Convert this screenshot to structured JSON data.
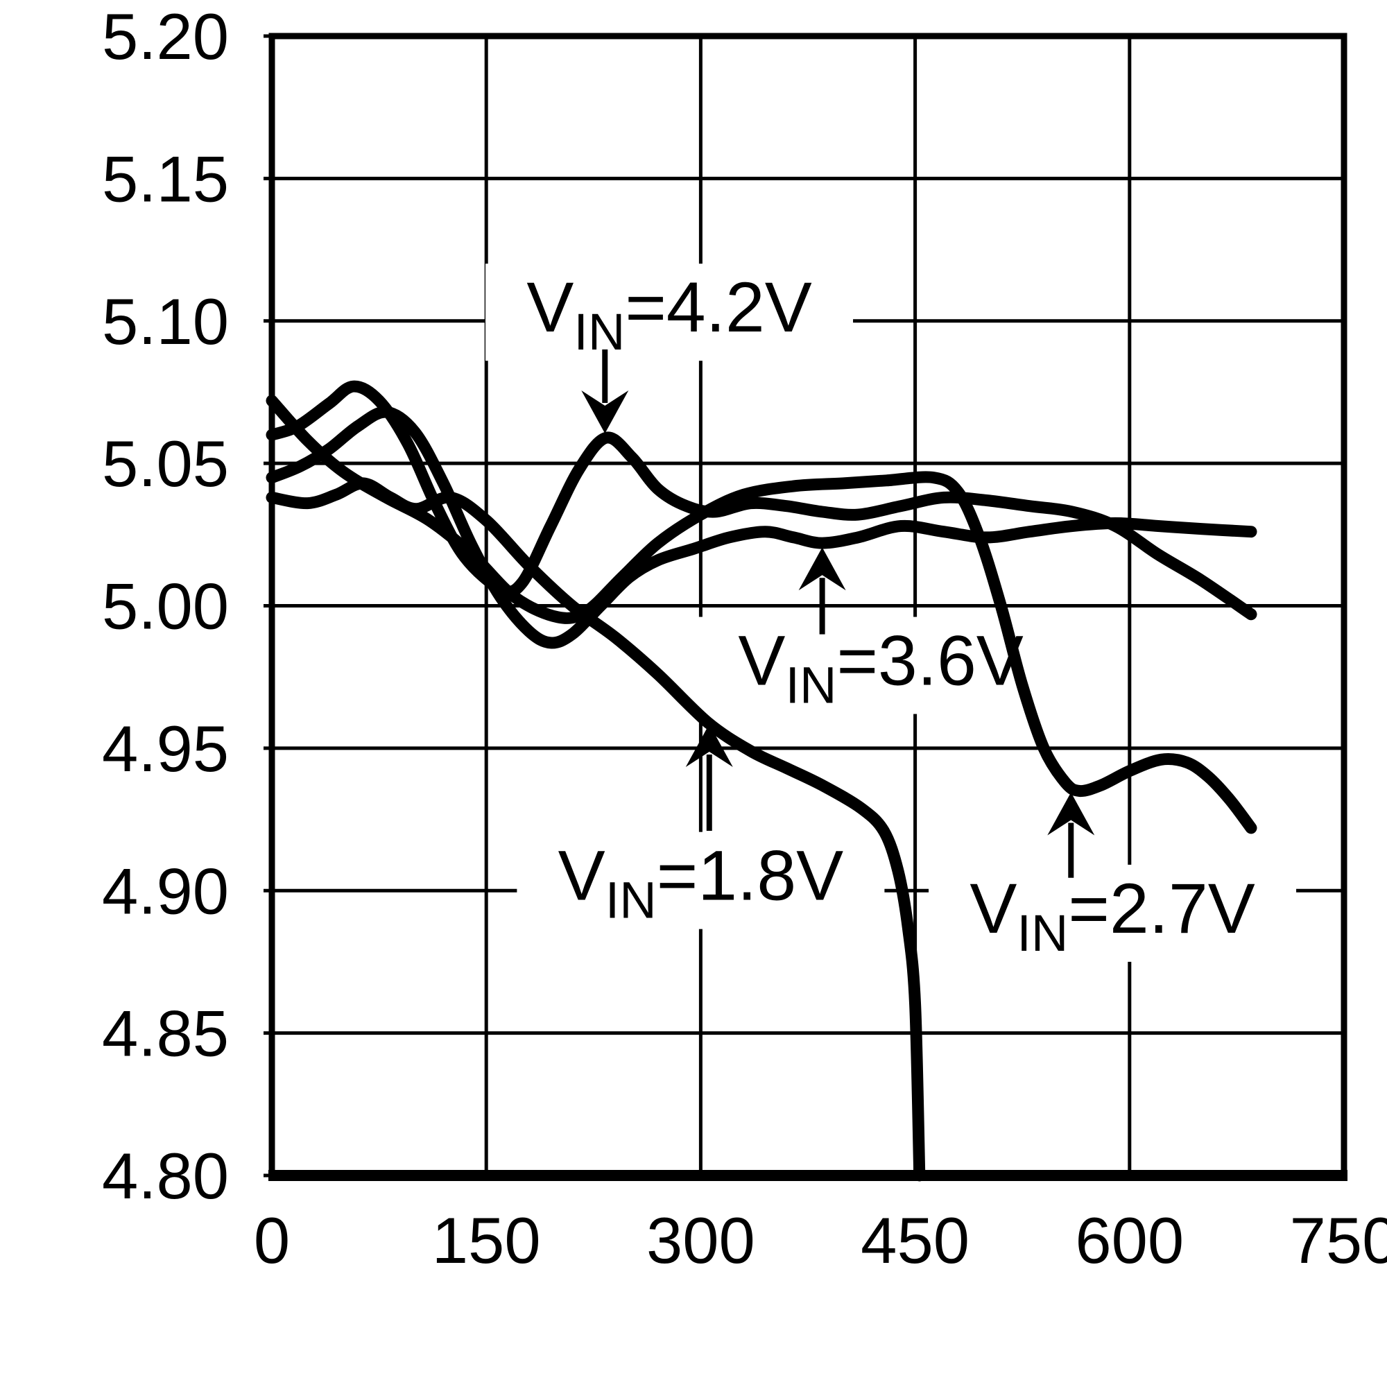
{
  "chart_data": {
    "type": "line",
    "title": "",
    "xlabel": "",
    "ylabel": "",
    "grid": true,
    "legend_position": "none",
    "x_axis": {
      "min": 0,
      "max": 750,
      "tick_labels": [
        "0",
        "150",
        "300",
        "450",
        "600",
        "750"
      ],
      "tick_values": [
        0,
        150,
        300,
        450,
        600,
        750
      ]
    },
    "y_axis": {
      "min": 4.8,
      "max": 5.2,
      "tick_labels": [
        "4.80",
        "4.85",
        "4.90",
        "4.95",
        "5.00",
        "5.05",
        "5.10",
        "5.15",
        "5.20"
      ],
      "tick_values": [
        4.8,
        4.85,
        4.9,
        4.95,
        5.0,
        5.05,
        5.1,
        5.15,
        5.2
      ]
    },
    "colors": {
      "stroke": "#000000",
      "background": "#ffffff"
    },
    "series": [
      {
        "id": "vin-4-2v",
        "name": "VIN=4.2V",
        "points": [
          [
            0,
            5.06
          ],
          [
            18,
            5.063
          ],
          [
            40,
            5.071
          ],
          [
            57,
            5.077
          ],
          [
            75,
            5.072
          ],
          [
            95,
            5.057
          ],
          [
            115,
            5.035
          ],
          [
            135,
            5.017
          ],
          [
            160,
            5.006
          ],
          [
            175,
            5.008
          ],
          [
            195,
            5.028
          ],
          [
            215,
            5.048
          ],
          [
            234,
            5.059
          ],
          [
            252,
            5.052
          ],
          [
            270,
            5.041
          ],
          [
            290,
            5.035
          ],
          [
            310,
            5.033
          ],
          [
            335,
            5.036
          ],
          [
            360,
            5.035
          ],
          [
            385,
            5.033
          ],
          [
            410,
            5.032
          ],
          [
            440,
            5.035
          ],
          [
            470,
            5.038
          ],
          [
            500,
            5.037
          ],
          [
            530,
            5.035
          ],
          [
            560,
            5.033
          ],
          [
            590,
            5.028
          ],
          [
            620,
            5.018
          ],
          [
            650,
            5.009
          ],
          [
            685,
            4.997
          ]
        ]
      },
      {
        "id": "vin-3-6v",
        "name": "VIN=3.6V",
        "points": [
          [
            0,
            5.045
          ],
          [
            20,
            5.049
          ],
          [
            40,
            5.055
          ],
          [
            60,
            5.063
          ],
          [
            80,
            5.068
          ],
          [
            100,
            5.061
          ],
          [
            120,
            5.043
          ],
          [
            140,
            5.021
          ],
          [
            160,
            5.003
          ],
          [
            180,
            4.991
          ],
          [
            195,
            4.987
          ],
          [
            210,
            4.99
          ],
          [
            230,
            5.0
          ],
          [
            250,
            5.01
          ],
          [
            270,
            5.016
          ],
          [
            295,
            5.02
          ],
          [
            320,
            5.024
          ],
          [
            345,
            5.026
          ],
          [
            365,
            5.024
          ],
          [
            385,
            5.022
          ],
          [
            410,
            5.024
          ],
          [
            440,
            5.028
          ],
          [
            470,
            5.026
          ],
          [
            500,
            5.024
          ],
          [
            530,
            5.026
          ],
          [
            560,
            5.028
          ],
          [
            590,
            5.029
          ],
          [
            620,
            5.028
          ],
          [
            650,
            5.027
          ],
          [
            685,
            5.026
          ]
        ]
      },
      {
        "id": "vin-2-7v",
        "name": "VIN=2.7V",
        "points": [
          [
            0,
            5.072
          ],
          [
            25,
            5.058
          ],
          [
            50,
            5.047
          ],
          [
            80,
            5.038
          ],
          [
            110,
            5.03
          ],
          [
            140,
            5.018
          ],
          [
            170,
            5.003
          ],
          [
            200,
            4.996
          ],
          [
            220,
            4.998
          ],
          [
            245,
            5.01
          ],
          [
            270,
            5.022
          ],
          [
            300,
            5.032
          ],
          [
            330,
            5.039
          ],
          [
            365,
            5.042
          ],
          [
            400,
            5.043
          ],
          [
            430,
            5.044
          ],
          [
            463,
            5.045
          ],
          [
            480,
            5.04
          ],
          [
            495,
            5.024
          ],
          [
            510,
            5.0
          ],
          [
            525,
            4.972
          ],
          [
            540,
            4.95
          ],
          [
            555,
            4.938
          ],
          [
            565,
            4.935
          ],
          [
            580,
            4.937
          ],
          [
            600,
            4.942
          ],
          [
            622,
            4.946
          ],
          [
            640,
            4.945
          ],
          [
            655,
            4.94
          ],
          [
            670,
            4.932
          ],
          [
            685,
            4.922
          ]
        ]
      },
      {
        "id": "vin-1-8v",
        "name": "VIN=1.8V",
        "points": [
          [
            0,
            5.038
          ],
          [
            25,
            5.036
          ],
          [
            45,
            5.039
          ],
          [
            64,
            5.043
          ],
          [
            83,
            5.038
          ],
          [
            101,
            5.034
          ],
          [
            125,
            5.038
          ],
          [
            150,
            5.03
          ],
          [
            180,
            5.014
          ],
          [
            210,
            5.0
          ],
          [
            240,
            4.989
          ],
          [
            270,
            4.976
          ],
          [
            305,
            4.959
          ],
          [
            335,
            4.949
          ],
          [
            360,
            4.943
          ],
          [
            385,
            4.937
          ],
          [
            412,
            4.929
          ],
          [
            428,
            4.921
          ],
          [
            438,
            4.907
          ],
          [
            445,
            4.887
          ],
          [
            450,
            4.86
          ],
          [
            453,
            4.8
          ]
        ]
      }
    ],
    "annotations": [
      {
        "series": "vin-4-2v",
        "label": {
          "pre": "V",
          "sub": "IN",
          "post": "=4.2V"
        },
        "label_x": 278,
        "label_y": 5.105,
        "arrow": {
          "x": 233,
          "from_y": 5.09,
          "to_y": 5.0605,
          "direction": "down"
        }
      },
      {
        "series": "vin-3-6v",
        "label": {
          "pre": "V",
          "sub": "IN",
          "post": "=3.6V"
        },
        "label_x": 426,
        "label_y": 4.981,
        "arrow": {
          "x": 385,
          "from_y": 4.99,
          "to_y": 5.0205,
          "direction": "up"
        }
      },
      {
        "series": "vin-1-8v",
        "label": {
          "pre": "V",
          "sub": "IN",
          "post": "=1.8V"
        },
        "label_x": 300,
        "label_y": 4.9055,
        "arrow": {
          "x": 306,
          "from_y": 4.921,
          "to_y": 4.9585,
          "direction": "up"
        }
      },
      {
        "series": "vin-2-7v",
        "label": {
          "pre": "V",
          "sub": "IN",
          "post": "=2.7V"
        },
        "label_x": 588,
        "label_y": 4.894,
        "arrow": {
          "x": 559,
          "from_y": 4.9045,
          "to_y": 4.9345,
          "direction": "up"
        }
      }
    ]
  }
}
